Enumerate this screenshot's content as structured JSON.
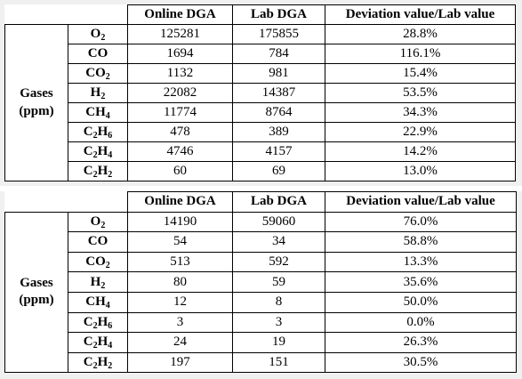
{
  "tables": [
    {
      "headers": [
        "Online DGA",
        "Lab DGA",
        "Deviation value/Lab value"
      ],
      "group_label_line1": "Gases",
      "group_label_line2": "(ppm)",
      "rows": [
        {
          "gas": "O",
          "sub": "2",
          "online": "125281",
          "lab": "175855",
          "dev": "28.8%"
        },
        {
          "gas": "CO",
          "sub": "",
          "online": "1694",
          "lab": "784",
          "dev": "116.1%"
        },
        {
          "gas": "CO",
          "sub": "2",
          "online": "1132",
          "lab": "981",
          "dev": "15.4%"
        },
        {
          "gas": "H",
          "sub": "2",
          "online": "22082",
          "lab": "14387",
          "dev": "53.5%"
        },
        {
          "gas": "CH",
          "sub": "4",
          "online": "11774",
          "lab": "8764",
          "dev": "34.3%"
        },
        {
          "gas": "C",
          "sub": "2",
          "gas2": "H",
          "sub2": "6",
          "online": "478",
          "lab": "389",
          "dev": "22.9%"
        },
        {
          "gas": "C",
          "sub": "2",
          "gas2": "H",
          "sub2": "4",
          "online": "4746",
          "lab": "4157",
          "dev": "14.2%"
        },
        {
          "gas": "C",
          "sub": "2",
          "gas2": "H",
          "sub2": "2",
          "online": "60",
          "lab": "69",
          "dev": "13.0%"
        }
      ]
    },
    {
      "headers": [
        "Online DGA",
        "Lab DGA",
        "Deviation value/Lab value"
      ],
      "group_label_line1": "Gases",
      "group_label_line2": "(ppm)",
      "rows": [
        {
          "gas": "O",
          "sub": "2",
          "online": "14190",
          "lab": "59060",
          "dev": "76.0%"
        },
        {
          "gas": "CO",
          "sub": "",
          "online": "54",
          "lab": "34",
          "dev": "58.8%"
        },
        {
          "gas": "CO",
          "sub": "2",
          "online": "513",
          "lab": "592",
          "dev": "13.3%"
        },
        {
          "gas": "H",
          "sub": "2",
          "online": "80",
          "lab": "59",
          "dev": "35.6%"
        },
        {
          "gas": "CH",
          "sub": "4",
          "online": "12",
          "lab": "8",
          "dev": "50.0%"
        },
        {
          "gas": "C",
          "sub": "2",
          "gas2": "H",
          "sub2": "6",
          "online": "3",
          "lab": "3",
          "dev": "0.0%"
        },
        {
          "gas": "C",
          "sub": "2",
          "gas2": "H",
          "sub2": "4",
          "online": "24",
          "lab": "19",
          "dev": "26.3%"
        },
        {
          "gas": "C",
          "sub": "2",
          "gas2": "H",
          "sub2": "2",
          "online": "197",
          "lab": "151",
          "dev": "30.5%"
        }
      ]
    }
  ]
}
